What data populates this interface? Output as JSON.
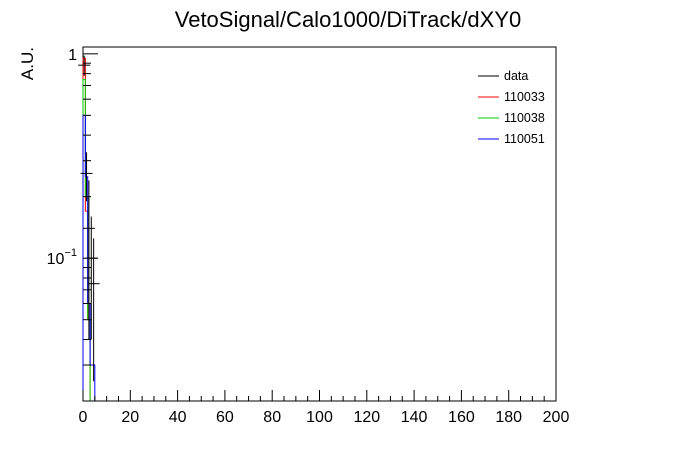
{
  "chart_data": {
    "type": "histogram",
    "title": "VetoSignal/Calo1000/DiTrack/dXY0",
    "xlabel": "",
    "ylabel": "A.U.",
    "xlim": [
      0,
      200
    ],
    "ylim": [
      0.02,
      1.08
    ],
    "yscale": "log",
    "grid": false,
    "legend_position": "top-right",
    "x_ticks": [
      "0",
      "20",
      "40",
      "60",
      "80",
      "100",
      "120",
      "140",
      "160",
      "180",
      "200"
    ],
    "y_ticks": [
      {
        "value": 1,
        "label": "1"
      },
      {
        "value": 0.1,
        "label": "10",
        "sup": "−1"
      }
    ],
    "series": [
      {
        "name": "data",
        "color": "#000000",
        "style": "errorbars",
        "points": [
          {
            "x": 0.5,
            "y": 0.88,
            "err": 0.1
          },
          {
            "x": 1.5,
            "y": 0.26,
            "err": 0.07
          },
          {
            "x": 2.5,
            "y": 0.14,
            "err": 0.1
          },
          {
            "x": 3.5,
            "y": 0.1,
            "err": 0.06
          },
          {
            "x": 4.5,
            "y": 0.075,
            "err": 0.05
          }
        ]
      },
      {
        "name": "110033",
        "color": "#ff0000",
        "style": "hist",
        "bins": [
          {
            "x0": 0,
            "x1": 1,
            "y": 0.95
          },
          {
            "x0": 1,
            "x1": 2,
            "y": 0.17
          },
          {
            "x0": 2,
            "x1": 3,
            "y": 0.05
          }
        ]
      },
      {
        "name": "110038",
        "color": "#00cc00",
        "style": "hist",
        "bins": [
          {
            "x0": 0,
            "x1": 1,
            "y": 0.75
          },
          {
            "x0": 1,
            "x1": 2,
            "y": 0.2
          },
          {
            "x0": 2,
            "x1": 3,
            "y": 0.05
          }
        ]
      },
      {
        "name": "110051",
        "color": "#0000ff",
        "style": "hist",
        "bins": [
          {
            "x0": 0,
            "x1": 1,
            "y": 0.5
          },
          {
            "x0": 1,
            "x1": 2,
            "y": 0.25
          },
          {
            "x0": 2,
            "x1": 3,
            "y": 0.06
          },
          {
            "x0": 3,
            "x1": 4,
            "y": 0.03
          },
          {
            "x0": 4,
            "x1": 5,
            "y": 0.03
          }
        ]
      }
    ]
  }
}
